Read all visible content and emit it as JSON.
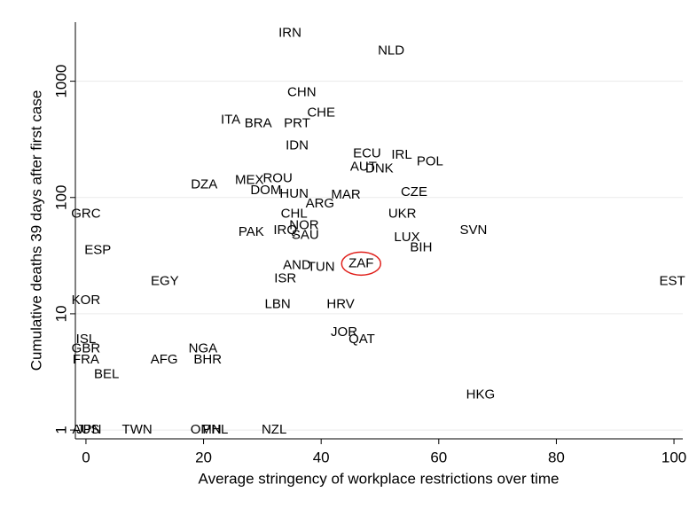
{
  "chart_data": {
    "type": "scatter-text",
    "xlabel": "Average stringency of workplace restrictions over time",
    "ylabel": "Cumulative deaths 39 days after first case",
    "labels": [
      "IRN",
      "NLD",
      "CHN",
      "CHE",
      "ITA",
      "BRA",
      "PRT",
      "IDN",
      "ECU",
      "IRL",
      "POL",
      "AUT",
      "DNK",
      "MEX",
      "ROU",
      "DZA",
      "DOM",
      "HUN",
      "MAR",
      "CZE",
      "ARG",
      "GRC",
      "CHL",
      "UKR",
      "NOR",
      "IRQ",
      "SAU",
      "PAK",
      "SVN",
      "LUX",
      "BIH",
      "ESP",
      "ZAF",
      "AND",
      "TUN",
      "ISR",
      "EGY",
      "EST",
      "KOR",
      "LBN",
      "HRV",
      "JOR",
      "QAT",
      "ISL",
      "GBR",
      "NGA",
      "FRA",
      "AFG",
      "BHR",
      "BEL",
      "HKG",
      "AUS",
      "JPN",
      "TWN",
      "OMN",
      "PHL",
      "NZL"
    ],
    "x": [
      34.7,
      51.9,
      36.7,
      40.0,
      24.6,
      29.3,
      35.9,
      35.9,
      47.8,
      53.7,
      58.5,
      47.2,
      49.9,
      27.8,
      32.6,
      20.1,
      30.6,
      35.4,
      44.2,
      55.8,
      39.8,
      0,
      35.4,
      53.8,
      37.1,
      33.9,
      37.3,
      28.1,
      65.9,
      54.6,
      57.0,
      2.0,
      46.8,
      35.9,
      40.0,
      33.9,
      13.4,
      99.7,
      0,
      32.6,
      43.3,
      43.9,
      46.9,
      0,
      0,
      19.9,
      0,
      13.3,
      20.7,
      3.5,
      67.1,
      0,
      0.5,
      8.7,
      20.4,
      22.0,
      32.0
    ],
    "values": [
      2580,
      1820,
      800,
      531,
      461,
      430,
      430,
      277,
      237,
      232,
      202,
      182,
      176,
      140,
      145,
      128,
      115,
      107,
      105,
      111,
      88,
      72,
      72,
      72,
      57,
      52,
      47,
      50,
      52,
      45,
      37,
      35,
      27,
      26,
      25,
      20,
      19,
      19,
      13,
      12,
      12,
      6.9,
      6,
      6,
      5,
      5,
      4,
      4,
      4,
      3,
      2,
      1,
      1,
      1,
      1,
      1,
      1
    ],
    "color": "#000000",
    "highlight": {
      "label": "ZAF",
      "color": "#e0201b"
    },
    "xlim": [
      -1.8,
      101.5
    ],
    "xticks": [
      0,
      20,
      40,
      60,
      80,
      100
    ],
    "ylim": [
      0.84,
      3220
    ],
    "yticks": [
      1,
      10,
      100,
      1000
    ],
    "ylog": true,
    "grid": true
  }
}
